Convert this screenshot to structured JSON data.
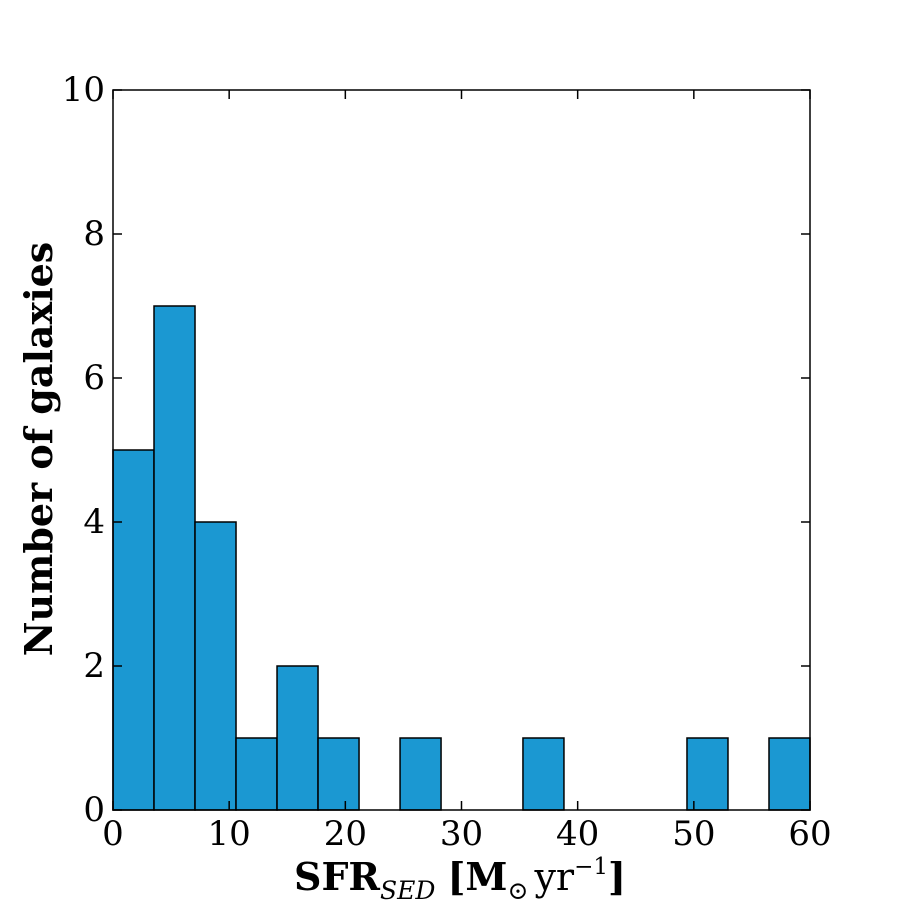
{
  "chart_data": {
    "type": "bar",
    "subtype": "histogram",
    "bin_edges": [
      0,
      3.53,
      7.06,
      10.59,
      14.12,
      17.65,
      21.18,
      24.71,
      28.24,
      31.76,
      35.29,
      38.82,
      42.35,
      45.88,
      49.41,
      52.94,
      56.47,
      60
    ],
    "values": [
      5,
      7,
      4,
      1,
      2,
      1,
      0,
      1,
      0,
      0,
      1,
      0,
      0,
      0,
      1,
      0,
      1
    ],
    "color": "#1b98d2",
    "edge_color": "#000000",
    "xlim": [
      0,
      60
    ],
    "ylim": [
      0,
      10
    ],
    "x_ticks": [
      0,
      10,
      20,
      30,
      40,
      50,
      60
    ],
    "y_ticks": [
      0,
      2,
      4,
      6,
      8,
      10
    ],
    "x_tick_labels": [
      "0",
      "10",
      "20",
      "30",
      "40",
      "50",
      "60"
    ],
    "y_tick_labels": [
      "0",
      "2",
      "4",
      "6",
      "8",
      "10"
    ],
    "ylabel": "Number of galaxies",
    "xlabel": {
      "main": "SFR",
      "subscript": "SED",
      "bracket_open": "[M",
      "sun_symbol": "⊙",
      "unit": "yr",
      "exponent": "−1",
      "bracket_close": "]"
    },
    "grid": false
  }
}
